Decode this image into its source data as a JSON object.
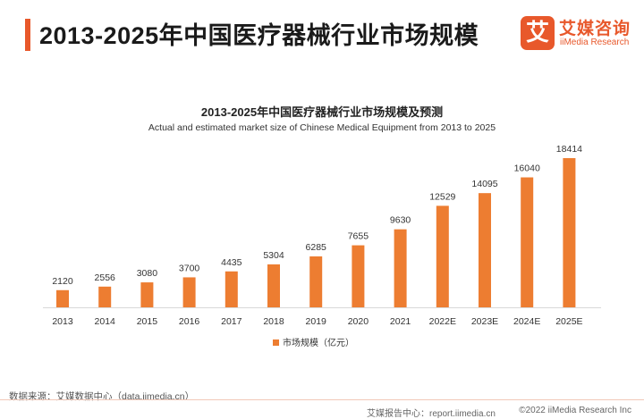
{
  "header": {
    "title": "2013-2025年中国医疗器械行业市场规模",
    "logo_mark": "艾",
    "logo_cn": "艾媒咨询",
    "logo_en": "iiMedia Research"
  },
  "chart_data": {
    "type": "bar",
    "title": "2013-2025年中国医疗器械行业市场规模及预测",
    "subtitle": "Actual and estimated market size of Chinese Medical Equipment from 2013 to 2025",
    "categories": [
      "2013",
      "2014",
      "2015",
      "2016",
      "2017",
      "2018",
      "2019",
      "2020",
      "2021",
      "2022E",
      "2023E",
      "2024E",
      "2025E"
    ],
    "series": [
      {
        "name": "市场规模（亿元）",
        "color": "#ed7d31",
        "values": [
          2120,
          2556,
          3080,
          3700,
          4435,
          5304,
          6285,
          7655,
          9630,
          12529,
          14095,
          16040,
          18414
        ]
      }
    ],
    "ylim": [
      0,
      18414
    ],
    "grid": false,
    "legend_position": "bottom"
  },
  "footer": {
    "source": "数据来源：艾媒数据中心（data.iimedia.cn）",
    "report": "艾媒报告中心：report.iimedia.cn",
    "copyright": "©2022 iiMedia Research Inc"
  }
}
